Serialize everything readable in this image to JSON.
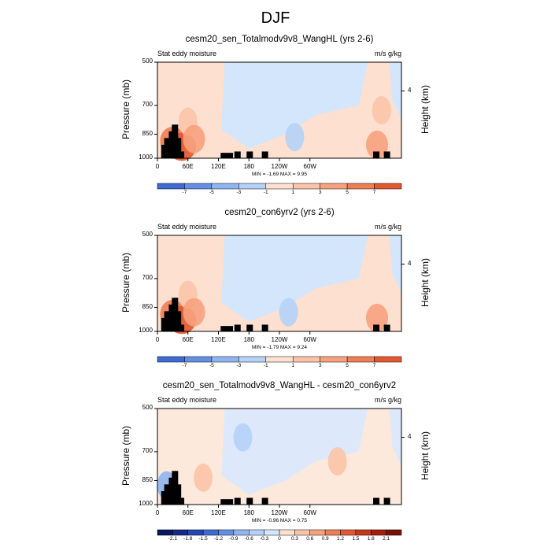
{
  "title": "DJF",
  "chart_data": [
    {
      "type": "heatmap",
      "title": "cesm20_sen_Totalmodv9v8_WangHL (yrs 2-6)",
      "left_subtitle": "Stat eddy moisture",
      "right_subtitle": "m/s g/kg",
      "ylabel": "Pressure (mb)",
      "ylabel_right": "Height (km)",
      "yticks": [
        "500",
        "700",
        "850",
        "1000"
      ],
      "yticks_right": [
        "4"
      ],
      "xticks": [
        "0",
        "60E",
        "120E",
        "180",
        "120W",
        "60W"
      ],
      "stats": "MIN = -1.69  MAX =  9.95",
      "colorbar_labels": [
        "-7",
        "-5",
        "-3",
        "-1",
        "1",
        "3",
        "5",
        "7"
      ],
      "features": [
        {
          "lon": 0.5,
          "p": 0.82,
          "v": 3
        },
        {
          "lon": 0.8,
          "p": 0.88,
          "v": 4
        },
        {
          "lon": 1.0,
          "p": 0.62,
          "v": 1
        },
        {
          "lon": 1.2,
          "p": 0.8,
          "v": 2
        },
        {
          "lon": 7.2,
          "p": 0.86,
          "v": 2
        },
        {
          "lon": 7.35,
          "p": 0.5,
          "v": 1
        },
        {
          "lon": 4.5,
          "p": 0.78,
          "v": -1
        }
      ]
    },
    {
      "type": "heatmap",
      "title": "cesm20_con6yrv2 (yrs 2-6)",
      "left_subtitle": "Stat eddy moisture",
      "right_subtitle": "m/s g/kg",
      "ylabel": "Pressure (mb)",
      "ylabel_right": "Height (km)",
      "yticks": [
        "500",
        "700",
        "850",
        "1000"
      ],
      "yticks_right": [
        "4"
      ],
      "xticks": [
        "0",
        "60E",
        "120E",
        "180",
        "120W",
        "60W"
      ],
      "stats": "MIN = -1.79  MAX =  9.24",
      "colorbar_labels": [
        "-7",
        "-5",
        "-3",
        "-1",
        "1",
        "3",
        "5",
        "7"
      ],
      "features": [
        {
          "lon": 0.5,
          "p": 0.82,
          "v": 3
        },
        {
          "lon": 0.8,
          "p": 0.88,
          "v": 4
        },
        {
          "lon": 1.0,
          "p": 0.62,
          "v": 1
        },
        {
          "lon": 1.2,
          "p": 0.8,
          "v": 2
        },
        {
          "lon": 7.2,
          "p": 0.86,
          "v": 2
        },
        {
          "lon": 4.3,
          "p": 0.8,
          "v": -1
        }
      ]
    },
    {
      "type": "heatmap",
      "title": "cesm20_sen_Totalmodv9v8_WangHL - cesm20_con6yrv2",
      "left_subtitle": "Stat eddy moisture",
      "right_subtitle": "m/s g/kg",
      "ylabel": "Pressure (mb)",
      "ylabel_right": "Height (km)",
      "yticks": [
        "500",
        "700",
        "850",
        "1000"
      ],
      "yticks_right": [
        "4"
      ],
      "xticks": [
        "0",
        "60E",
        "120E",
        "180",
        "120W",
        "60W"
      ],
      "stats": "MIN = -0.96  MAX =  0.75",
      "colorbar_labels": [
        "-2.1",
        "-1.8",
        "-1.5",
        "-1.2",
        "-0.9",
        "-0.6",
        "-0.3",
        "0",
        "0.3",
        "0.6",
        "0.9",
        "1.2",
        "1.5",
        "1.8",
        "2.1"
      ],
      "features": [
        {
          "lon": 0.3,
          "p": 0.8,
          "v": -0.6
        },
        {
          "lon": 2.8,
          "p": 0.3,
          "v": -0.3
        },
        {
          "lon": 5.9,
          "p": 0.55,
          "v": 0.3
        },
        {
          "lon": 1.5,
          "p": 0.72,
          "v": 0.3
        }
      ]
    }
  ]
}
